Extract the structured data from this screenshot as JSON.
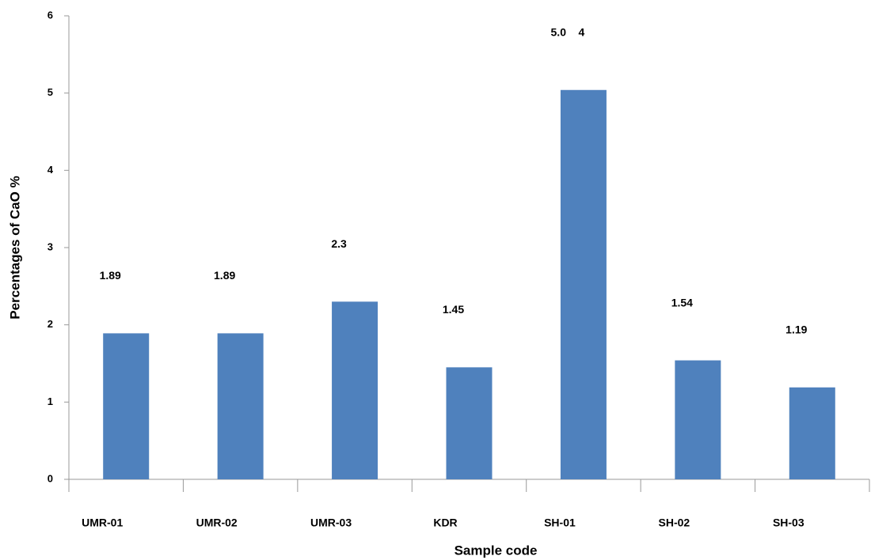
{
  "chart_data": {
    "type": "bar",
    "x_label": "Sample code",
    "y_label": "Percentages of CaO %",
    "categories": [
      "UMR-01",
      "UMR-02",
      "UMR-03",
      "KDR",
      "SH-01",
      "SH-02",
      "SH-03"
    ],
    "values": [
      1.89,
      1.89,
      2.3,
      1.45,
      5.04,
      1.54,
      1.19
    ],
    "value_labels": [
      "1.89",
      "1.89",
      "2.3",
      "1.45",
      "5.0    4",
      "1.54",
      "1.19"
    ],
    "color": "#4f81bd",
    "ylim": [
      0,
      6
    ],
    "yticks": [
      0,
      1,
      2,
      3,
      4,
      5,
      6
    ],
    "grid": false
  }
}
